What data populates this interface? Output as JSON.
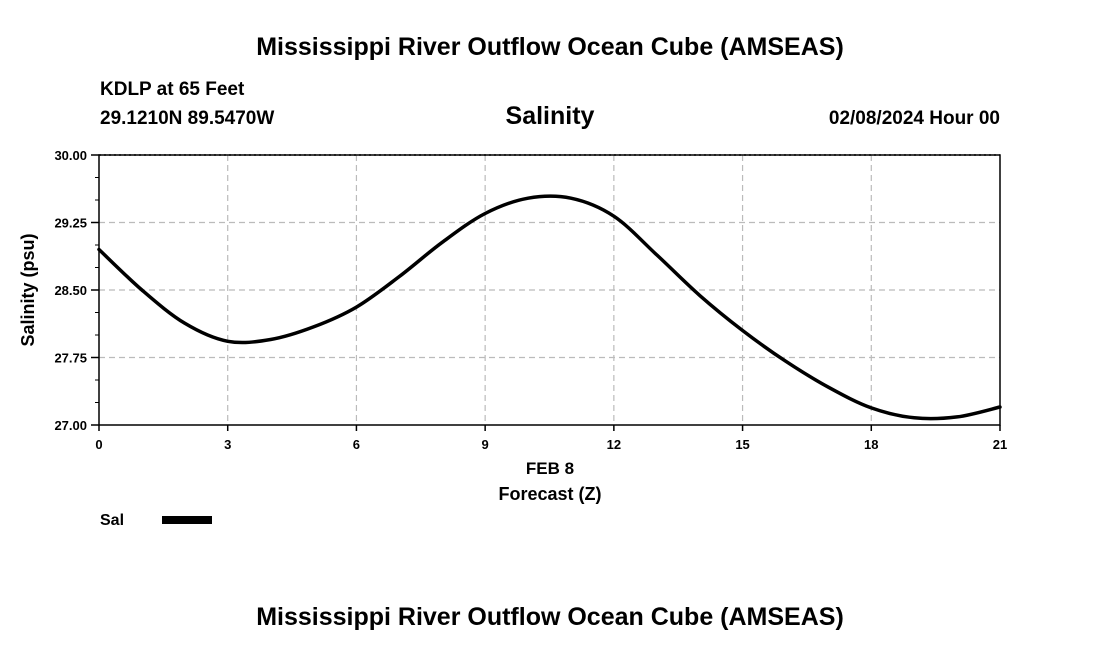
{
  "header": {
    "title": "Mississippi River Outflow Ocean Cube (AMSEAS)",
    "station": "KDLP at 65 Feet",
    "coordinates": "29.1210N  89.5470W",
    "datetime": "02/08/2024 Hour 00"
  },
  "footer": {
    "title": "Mississippi River Outflow Ocean Cube (AMSEAS)"
  },
  "chart_data": {
    "type": "line",
    "title": "Salinity",
    "xlabel": "Forecast (Z)",
    "xlabel_date": "FEB 8",
    "ylabel": "Salinity (psu)",
    "xlim": [
      0,
      21
    ],
    "ylim": [
      27.0,
      30.0
    ],
    "x_ticks": [
      0,
      3,
      6,
      9,
      12,
      15,
      18,
      21
    ],
    "y_ticks": [
      "27.00",
      "27.75",
      "28.50",
      "29.25",
      "30.00"
    ],
    "grid": true,
    "legend": {
      "position": "bottom-left",
      "entries": [
        "Sal"
      ]
    },
    "series": [
      {
        "name": "Sal",
        "color": "#000000",
        "x": [
          0,
          1,
          2,
          3,
          4,
          5,
          6,
          7,
          8,
          9,
          10,
          11,
          12,
          13,
          14,
          15,
          16,
          17,
          18,
          19,
          20,
          21
        ],
        "values": [
          28.95,
          28.5,
          28.13,
          27.93,
          27.95,
          28.09,
          28.31,
          28.65,
          29.03,
          29.35,
          29.52,
          29.52,
          29.32,
          28.89,
          28.44,
          28.05,
          27.71,
          27.42,
          27.19,
          27.08,
          27.09,
          27.2
        ]
      }
    ]
  }
}
